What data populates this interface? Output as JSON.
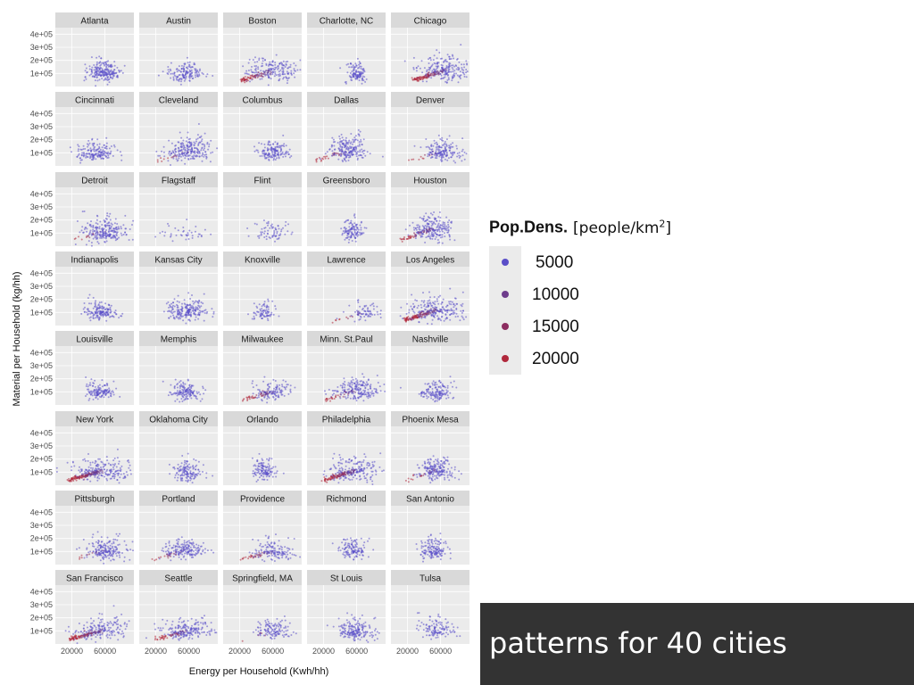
{
  "chart_data": {
    "type": "scatter",
    "xlabel": "Energy per Household (Kwh/hh)",
    "ylabel": "Material per Household (kg/hh)",
    "x_ticks": [
      "20000",
      "60000"
    ],
    "x_tick_values": [
      20000,
      60000
    ],
    "y_ticks": [
      "1e+05",
      "2e+05",
      "3e+05",
      "4e+05"
    ],
    "y_tick_values": [
      100000,
      200000,
      300000,
      400000
    ],
    "xlim": [
      0,
      95000
    ],
    "ylim": [
      0,
      450000
    ],
    "grid": true,
    "legend_position": "right",
    "color_legend": {
      "title": "Pop.Dens.",
      "unit": "[people/km",
      "unit_sup": "2",
      "unit_close": "]",
      "items": [
        {
          "label": "5000",
          "color": "#5a4ec8"
        },
        {
          "label": "10000",
          "color": "#6e3c8c"
        },
        {
          "label": "15000",
          "color": "#8c2d60"
        },
        {
          "label": "20000",
          "color": "#b0283c"
        }
      ]
    },
    "panels": [
      {
        "city": "Atlanta",
        "cx": 58000,
        "cy": 110000,
        "sx": 9000,
        "sy": 45000,
        "n": 220,
        "red": 0.0
      },
      {
        "city": "Austin",
        "cx": 55000,
        "cy": 100000,
        "sx": 11000,
        "sy": 45000,
        "n": 150,
        "red": 0.0
      },
      {
        "city": "Boston",
        "cx": 60000,
        "cy": 120000,
        "sx": 16000,
        "sy": 55000,
        "n": 260,
        "red": 0.3
      },
      {
        "city": "Charlotte, NC",
        "cx": 60000,
        "cy": 100000,
        "sx": 6000,
        "sy": 45000,
        "n": 120,
        "red": 0.0
      },
      {
        "city": "Chicago",
        "cx": 65000,
        "cy": 125000,
        "sx": 16000,
        "sy": 60000,
        "n": 320,
        "red": 0.35
      },
      {
        "city": "Cincinnati",
        "cx": 50000,
        "cy": 100000,
        "sx": 12000,
        "sy": 40000,
        "n": 170,
        "red": 0.0
      },
      {
        "city": "Cleveland",
        "cx": 60000,
        "cy": 110000,
        "sx": 14000,
        "sy": 55000,
        "n": 240,
        "red": 0.05
      },
      {
        "city": "Columbus",
        "cx": 60000,
        "cy": 100000,
        "sx": 9000,
        "sy": 40000,
        "n": 150,
        "red": 0.0
      },
      {
        "city": "Dallas",
        "cx": 50000,
        "cy": 120000,
        "sx": 11000,
        "sy": 55000,
        "n": 230,
        "red": 0.15
      },
      {
        "city": "Denver",
        "cx": 62000,
        "cy": 110000,
        "sx": 12000,
        "sy": 45000,
        "n": 180,
        "red": 0.1
      },
      {
        "city": "Detroit",
        "cx": 60000,
        "cy": 110000,
        "sx": 13000,
        "sy": 55000,
        "n": 240,
        "red": 0.05
      },
      {
        "city": "Flagstaff",
        "cx": 55000,
        "cy": 100000,
        "sx": 14000,
        "sy": 45000,
        "n": 40,
        "red": 0.0
      },
      {
        "city": "Flint",
        "cx": 60000,
        "cy": 100000,
        "sx": 12000,
        "sy": 45000,
        "n": 70,
        "red": 0.0
      },
      {
        "city": "Greensboro",
        "cx": 55000,
        "cy": 110000,
        "sx": 6000,
        "sy": 50000,
        "n": 120,
        "red": 0.0
      },
      {
        "city": "Houston",
        "cx": 50000,
        "cy": 130000,
        "sx": 11000,
        "sy": 60000,
        "n": 260,
        "red": 0.2
      },
      {
        "city": "Indianapolis",
        "cx": 55000,
        "cy": 110000,
        "sx": 10000,
        "sy": 40000,
        "n": 160,
        "red": 0.0
      },
      {
        "city": "Kansas City",
        "cx": 58000,
        "cy": 110000,
        "sx": 13000,
        "sy": 50000,
        "n": 210,
        "red": 0.0
      },
      {
        "city": "Knoxville",
        "cx": 50000,
        "cy": 100000,
        "sx": 7000,
        "sy": 40000,
        "n": 80,
        "red": 0.0
      },
      {
        "city": "Lawrence",
        "cx": 70000,
        "cy": 100000,
        "sx": 10000,
        "sy": 40000,
        "n": 80,
        "red": 0.2
      },
      {
        "city": "Los Angeles",
        "cx": 55000,
        "cy": 120000,
        "sx": 18000,
        "sy": 65000,
        "n": 340,
        "red": 0.35
      },
      {
        "city": "Louisville",
        "cx": 55000,
        "cy": 100000,
        "sx": 8000,
        "sy": 40000,
        "n": 140,
        "red": 0.0
      },
      {
        "city": "Memphis",
        "cx": 55000,
        "cy": 100000,
        "sx": 9000,
        "sy": 40000,
        "n": 150,
        "red": 0.0
      },
      {
        "city": "Milwaukee",
        "cx": 60000,
        "cy": 100000,
        "sx": 11000,
        "sy": 45000,
        "n": 160,
        "red": 0.25
      },
      {
        "city": "Minn. St.Paul",
        "cx": 60000,
        "cy": 110000,
        "sx": 15000,
        "sy": 45000,
        "n": 230,
        "red": 0.15
      },
      {
        "city": "Nashville",
        "cx": 55000,
        "cy": 100000,
        "sx": 9000,
        "sy": 40000,
        "n": 150,
        "red": 0.0
      },
      {
        "city": "New York",
        "cx": 55000,
        "cy": 110000,
        "sx": 20000,
        "sy": 55000,
        "n": 340,
        "red": 0.45
      },
      {
        "city": "Oklahoma City",
        "cx": 58000,
        "cy": 100000,
        "sx": 8000,
        "sy": 50000,
        "n": 140,
        "red": 0.0
      },
      {
        "city": "Orlando",
        "cx": 50000,
        "cy": 110000,
        "sx": 7000,
        "sy": 50000,
        "n": 130,
        "red": 0.0
      },
      {
        "city": "Philadelphia",
        "cx": 58000,
        "cy": 110000,
        "sx": 17000,
        "sy": 55000,
        "n": 300,
        "red": 0.35
      },
      {
        "city": "Phoenix Mesa",
        "cx": 55000,
        "cy": 110000,
        "sx": 10000,
        "sy": 45000,
        "n": 210,
        "red": 0.1
      },
      {
        "city": "Pittsburgh",
        "cx": 60000,
        "cy": 110000,
        "sx": 12000,
        "sy": 50000,
        "n": 200,
        "red": 0.05
      },
      {
        "city": "Portland",
        "cx": 55000,
        "cy": 110000,
        "sx": 13000,
        "sy": 45000,
        "n": 200,
        "red": 0.1
      },
      {
        "city": "Providence",
        "cx": 60000,
        "cy": 100000,
        "sx": 13000,
        "sy": 45000,
        "n": 170,
        "red": 0.2
      },
      {
        "city": "Richmond",
        "cx": 55000,
        "cy": 110000,
        "sx": 8000,
        "sy": 45000,
        "n": 130,
        "red": 0.0
      },
      {
        "city": "San Antonio",
        "cx": 52000,
        "cy": 110000,
        "sx": 8000,
        "sy": 45000,
        "n": 150,
        "red": 0.0
      },
      {
        "city": "San Francisco",
        "cx": 55000,
        "cy": 100000,
        "sx": 18000,
        "sy": 50000,
        "n": 280,
        "red": 0.35
      },
      {
        "city": "Seattle",
        "cx": 58000,
        "cy": 100000,
        "sx": 16000,
        "sy": 45000,
        "n": 240,
        "red": 0.2
      },
      {
        "city": "Springfield, MA",
        "cx": 62000,
        "cy": 100000,
        "sx": 11000,
        "sy": 40000,
        "n": 130,
        "red": 0.05
      },
      {
        "city": "St Louis",
        "cx": 58000,
        "cy": 100000,
        "sx": 12000,
        "sy": 45000,
        "n": 190,
        "red": 0.0
      },
      {
        "city": "Tulsa",
        "cx": 55000,
        "cy": 110000,
        "sx": 11000,
        "sy": 45000,
        "n": 120,
        "red": 0.0
      }
    ]
  },
  "caption": "patterns for 40 cities"
}
